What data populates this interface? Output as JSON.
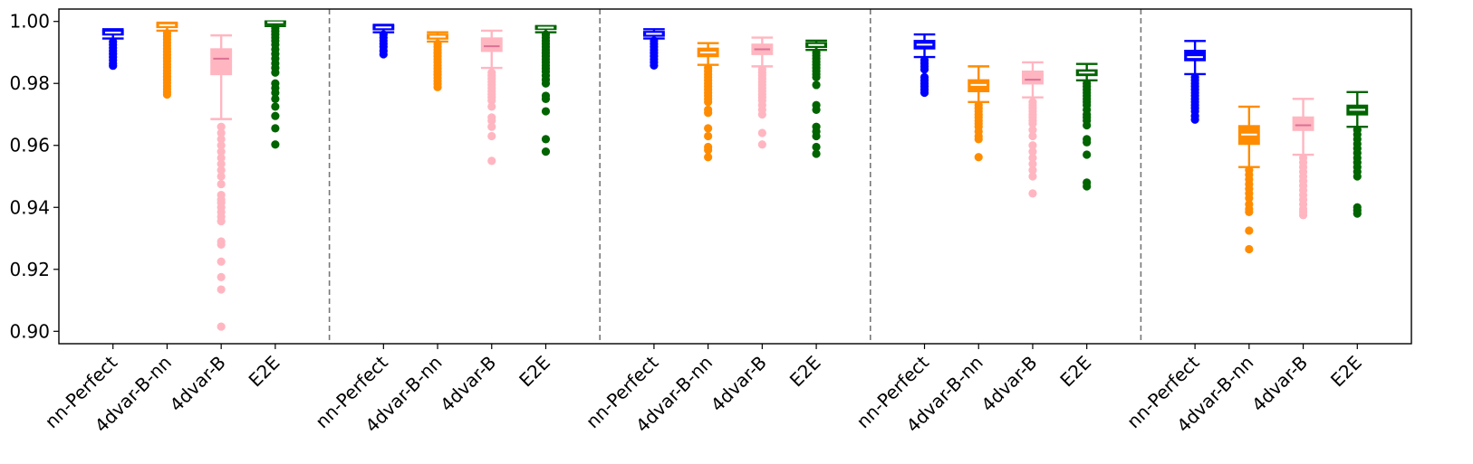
{
  "chart_data": {
    "type": "box",
    "ylim": [
      0.896,
      1.004
    ],
    "yticks": [
      "0.90",
      "0.92",
      "0.94",
      "0.96",
      "0.98",
      "1.00"
    ],
    "ytick_values": [
      0.9,
      0.92,
      0.94,
      0.96,
      0.98,
      1.0
    ],
    "grid": false,
    "legend": "none",
    "colors": {
      "nn-Perfect": "#0000ff",
      "4dvar-B-nn": "#ff8c00",
      "4dvar-B": "#ffb6c1",
      "E2E": "#006400",
      "median_line": "#ffffff",
      "median_line_4dvar_B": "#db7093",
      "separator": "#777777"
    },
    "groups": [
      {
        "categories": [
          "nn-Perfect",
          "4dvar-B-nn",
          "4dvar-B",
          "E2E"
        ],
        "boxes": [
          {
            "label": "nn-Perfect",
            "whislo": 0.9945,
            "q1": 0.9958,
            "med": 0.9964,
            "q3": 0.997,
            "whishi": 0.9975,
            "fliers": [
              0.9935,
              0.9925,
              0.9915,
              0.9905,
              0.9895,
              0.9885,
              0.9875,
              0.9865,
              0.9857
            ]
          },
          {
            "label": "4dvar-B-nn",
            "whislo": 0.997,
            "q1": 0.9982,
            "med": 0.9988,
            "q3": 0.9993,
            "whishi": 0.9996,
            "fliers": [
              0.9962,
              0.9952,
              0.9942,
              0.9932,
              0.9922,
              0.9912,
              0.9902,
              0.9892,
              0.9882,
              0.9872,
              0.9862,
              0.9852,
              0.9842,
              0.9832,
              0.9822,
              0.9812,
              0.9802,
              0.9792,
              0.9782,
              0.9772,
              0.9764
            ]
          },
          {
            "label": "4dvar-B",
            "whislo": 0.9685,
            "q1": 0.983,
            "med": 0.988,
            "q3": 0.991,
            "whishi": 0.9955,
            "fliers": [
              0.966,
              0.964,
              0.962,
              0.96,
              0.958,
              0.956,
              0.954,
              0.952,
              0.95,
              0.9475,
              0.944,
              0.9425,
              0.9415,
              0.94,
              0.9385,
              0.937,
              0.9355,
              0.929,
              0.928,
              0.9225,
              0.9175,
              0.9135,
              0.9015
            ]
          },
          {
            "label": "E2E",
            "whislo": 0.9985,
            "q1": 0.9992,
            "med": 0.9997,
            "q3": 0.9999,
            "whishi": 1.0,
            "fliers": [
              0.9978,
              0.9968,
              0.9958,
              0.9948,
              0.9938,
              0.9925,
              0.991,
              0.9895,
              0.988,
              0.9865,
              0.985,
              0.9835,
              0.98,
              0.9785,
              0.977,
              0.975,
              0.9725,
              0.9695,
              0.9655,
              0.9603
            ]
          }
        ]
      },
      {
        "categories": [
          "nn-Perfect",
          "4dvar-B-nn",
          "4dvar-B",
          "E2E"
        ],
        "boxes": [
          {
            "label": "nn-Perfect",
            "whislo": 0.9965,
            "q1": 0.9975,
            "med": 0.9981,
            "q3": 0.9986,
            "whishi": 0.9989,
            "fliers": [
              0.9958,
              0.9948,
              0.9938,
              0.9928,
              0.9918,
              0.9905,
              0.9894
            ]
          },
          {
            "label": "4dvar-B-nn",
            "whislo": 0.9935,
            "q1": 0.9945,
            "med": 0.9951,
            "q3": 0.9957,
            "whishi": 0.9965,
            "fliers": [
              0.9928,
              0.9918,
              0.9908,
              0.9898,
              0.9888,
              0.9878,
              0.9868,
              0.9858,
              0.9848,
              0.9838,
              0.9828,
              0.9818,
              0.9808,
              0.9798,
              0.9788
            ]
          },
          {
            "label": "4dvar-B",
            "whislo": 0.985,
            "q1": 0.9905,
            "med": 0.992,
            "q3": 0.9945,
            "whishi": 0.997,
            "fliers": [
              0.9835,
              0.9825,
              0.9815,
              0.9805,
              0.9795,
              0.9785,
              0.9775,
              0.9765,
              0.9755,
              0.9745,
              0.9725,
              0.969,
              0.968,
              0.966,
              0.963,
              0.955
            ]
          },
          {
            "label": "E2E",
            "whislo": 0.9965,
            "q1": 0.9976,
            "med": 0.998,
            "q3": 0.9983,
            "whishi": 0.9985,
            "fliers": [
              0.9958,
              0.9948,
              0.9938,
              0.9928,
              0.9918,
              0.9908,
              0.9898,
              0.9888,
              0.9878,
              0.9868,
              0.9858,
              0.9848,
              0.9838,
              0.9825,
              0.9812,
              0.98,
              0.976,
              0.975,
              0.971,
              0.962,
              0.958
            ]
          }
        ]
      },
      {
        "categories": [
          "nn-Perfect",
          "4dvar-B-nn",
          "4dvar-B",
          "E2E"
        ],
        "boxes": [
          {
            "label": "nn-Perfect",
            "whislo": 0.9945,
            "q1": 0.9954,
            "med": 0.996,
            "q3": 0.9966,
            "whishi": 0.9975,
            "fliers": [
              0.9938,
              0.9928,
              0.9918,
              0.9908,
              0.9898,
              0.9888,
              0.9878,
              0.9868,
              0.9858
            ]
          },
          {
            "label": "4dvar-B-nn",
            "whislo": 0.986,
            "q1": 0.9888,
            "med": 0.99,
            "q3": 0.9912,
            "whishi": 0.993,
            "fliers": [
              0.985,
              0.984,
              0.983,
              0.982,
              0.981,
              0.98,
              0.979,
              0.978,
              0.977,
              0.976,
              0.975,
              0.974,
              0.9715,
              0.9705,
              0.9655,
              0.963,
              0.9595,
              0.9585,
              0.9562
            ]
          },
          {
            "label": "4dvar-B",
            "whislo": 0.9855,
            "q1": 0.9895,
            "med": 0.991,
            "q3": 0.9925,
            "whishi": 0.9948,
            "fliers": [
              0.9845,
              0.9835,
              0.9825,
              0.9815,
              0.9805,
              0.9795,
              0.9785,
              0.9775,
              0.9765,
              0.9755,
              0.9745,
              0.973,
              0.9715,
              0.97,
              0.964,
              0.9603
            ]
          },
          {
            "label": "E2E",
            "whislo": 0.9908,
            "q1": 0.9918,
            "med": 0.9924,
            "q3": 0.993,
            "whishi": 0.9938,
            "fliers": [
              0.99,
              0.989,
              0.988,
              0.987,
              0.986,
              0.985,
              0.984,
              0.983,
              0.982,
              0.9795,
              0.973,
              0.9715,
              0.966,
              0.9645,
              0.963,
              0.9595,
              0.9573
            ]
          }
        ]
      },
      {
        "categories": [
          "nn-Perfect",
          "4dvar-B-nn",
          "4dvar-B",
          "E2E"
        ],
        "boxes": [
          {
            "label": "nn-Perfect",
            "whislo": 0.9885,
            "q1": 0.9913,
            "med": 0.9925,
            "q3": 0.9937,
            "whishi": 0.9958,
            "fliers": [
              0.9875,
              0.9865,
              0.9855,
              0.9845,
              0.982,
              0.981,
              0.98,
              0.979,
              0.978,
              0.977
            ]
          },
          {
            "label": "4dvar-B-nn",
            "whislo": 0.974,
            "q1": 0.9775,
            "med": 0.9795,
            "q3": 0.981,
            "whishi": 0.9855,
            "fliers": [
              0.973,
              0.972,
              0.971,
              0.97,
              0.969,
              0.968,
              0.967,
              0.966,
              0.9645,
              0.963,
              0.962,
              0.9562
            ]
          },
          {
            "label": "4dvar-B",
            "whislo": 0.9755,
            "q1": 0.98,
            "med": 0.9812,
            "q3": 0.9838,
            "whishi": 0.9868,
            "fliers": [
              0.974,
              0.973,
              0.972,
              0.971,
              0.97,
              0.969,
              0.968,
              0.967,
              0.965,
              0.963,
              0.96,
              0.958,
              0.956,
              0.954,
              0.952,
              0.95,
              0.9445
            ]
          },
          {
            "label": "E2E",
            "whislo": 0.981,
            "q1": 0.9827,
            "med": 0.9835,
            "q3": 0.9842,
            "whishi": 0.9863,
            "fliers": [
              0.98,
              0.979,
              0.978,
              0.977,
              0.976,
              0.975,
              0.974,
              0.973,
              0.9715,
              0.97,
              0.969,
              0.968,
              0.9665,
              0.962,
              0.961,
              0.957,
              0.948,
              0.9468
            ]
          }
        ]
      },
      {
        "categories": [
          "nn-Perfect",
          "4dvar-B-nn",
          "4dvar-B",
          "E2E"
        ],
        "boxes": [
          {
            "label": "nn-Perfect",
            "whislo": 0.983,
            "q1": 0.9875,
            "med": 0.9885,
            "q3": 0.9905,
            "whishi": 0.9937,
            "fliers": [
              0.982,
              0.981,
              0.98,
              0.979,
              0.978,
              0.977,
              0.976,
              0.975,
              0.974,
              0.973,
              0.972,
              0.971,
              0.9695,
              0.9683
            ]
          },
          {
            "label": "4dvar-B-nn",
            "whislo": 0.953,
            "q1": 0.9605,
            "med": 0.9635,
            "q3": 0.9662,
            "whishi": 0.9725,
            "fliers": [
              0.952,
              0.9505,
              0.949,
              0.9475,
              0.946,
              0.9445,
              0.943,
              0.941,
              0.9395,
              0.9385,
              0.9325,
              0.9265
            ]
          },
          {
            "label": "4dvar-B",
            "whislo": 0.957,
            "q1": 0.965,
            "med": 0.9665,
            "q3": 0.969,
            "whishi": 0.975,
            "fliers": [
              0.956,
              0.9545,
              0.953,
              0.9515,
              0.95,
              0.9485,
              0.947,
              0.9455,
              0.944,
              0.9425,
              0.941,
              0.9395,
              0.9385,
              0.9375
            ]
          },
          {
            "label": "E2E",
            "whislo": 0.966,
            "q1": 0.97,
            "med": 0.9715,
            "q3": 0.9728,
            "whishi": 0.9772,
            "fliers": [
              0.965,
              0.9635,
              0.962,
              0.9605,
              0.959,
              0.9575,
              0.956,
              0.9545,
              0.953,
              0.9515,
              0.95,
              0.94,
              0.939,
              0.938
            ]
          }
        ]
      }
    ]
  }
}
